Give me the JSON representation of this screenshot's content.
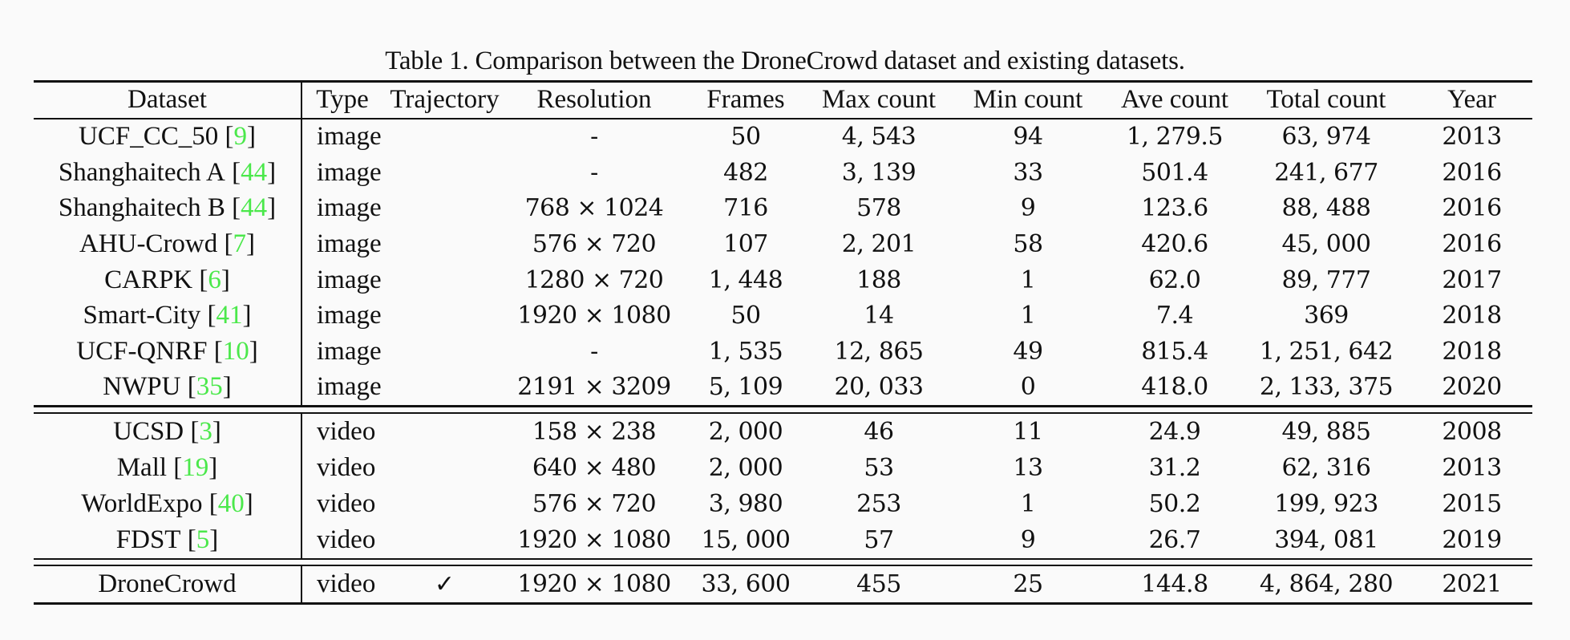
{
  "caption": "Table 1. Comparison between the DroneCrowd dataset and existing datasets.",
  "colors": {
    "citation": "#4be84b",
    "text": "#111111",
    "background": "#fafafa"
  },
  "table": {
    "headers": {
      "dataset": "Dataset",
      "type": "Type",
      "trajectory": "Trajectory",
      "resolution": "Resolution",
      "frames": "Frames",
      "max_count": "Max count",
      "min_count": "Min count",
      "ave_count": "Ave count",
      "total_count": "Total count",
      "year": "Year"
    },
    "image_datasets": [
      {
        "name": "UCF_CC_50",
        "cite": "9",
        "type": "image",
        "trajectory": "",
        "resolution": "-",
        "frames": "50",
        "max_count": "4, 543",
        "min_count": "94",
        "ave_count": "1, 279.5",
        "total_count": "63, 974",
        "year": "2013"
      },
      {
        "name": "Shanghaitech A",
        "cite": "44",
        "type": "image",
        "trajectory": "",
        "resolution": "-",
        "frames": "482",
        "max_count": "3, 139",
        "min_count": "33",
        "ave_count": "501.4",
        "total_count": "241, 677",
        "year": "2016"
      },
      {
        "name": "Shanghaitech B",
        "cite": "44",
        "type": "image",
        "trajectory": "",
        "resolution": "768 × 1024",
        "frames": "716",
        "max_count": "578",
        "min_count": "9",
        "ave_count": "123.6",
        "total_count": "88, 488",
        "year": "2016"
      },
      {
        "name": "AHU-Crowd",
        "cite": "7",
        "type": "image",
        "trajectory": "",
        "resolution": "576 × 720",
        "frames": "107",
        "max_count": "2, 201",
        "min_count": "58",
        "ave_count": "420.6",
        "total_count": "45, 000",
        "year": "2016"
      },
      {
        "name": "CARPK",
        "cite": "6",
        "type": "image",
        "trajectory": "",
        "resolution": "1280 × 720",
        "frames": "1, 448",
        "max_count": "188",
        "min_count": "1",
        "ave_count": "62.0",
        "total_count": "89, 777",
        "year": "2017"
      },
      {
        "name": "Smart-City",
        "cite": "41",
        "type": "image",
        "trajectory": "",
        "resolution": "1920 × 1080",
        "frames": "50",
        "max_count": "14",
        "min_count": "1",
        "ave_count": "7.4",
        "total_count": "369",
        "year": "2018"
      },
      {
        "name": "UCF-QNRF",
        "cite": "10",
        "type": "image",
        "trajectory": "",
        "resolution": "-",
        "frames": "1, 535",
        "max_count": "12, 865",
        "min_count": "49",
        "ave_count": "815.4",
        "total_count": "1, 251, 642",
        "year": "2018"
      },
      {
        "name": "NWPU",
        "cite": "35",
        "type": "image",
        "trajectory": "",
        "resolution": "2191 × 3209",
        "frames": "5, 109",
        "max_count": "20, 033",
        "min_count": "0",
        "ave_count": "418.0",
        "total_count": "2, 133, 375",
        "year": "2020"
      }
    ],
    "video_datasets": [
      {
        "name": "UCSD",
        "cite": "3",
        "type": "video",
        "trajectory": "",
        "resolution": "158 × 238",
        "frames": "2, 000",
        "max_count": "46",
        "min_count": "11",
        "ave_count": "24.9",
        "total_count": "49, 885",
        "year": "2008"
      },
      {
        "name": "Mall",
        "cite": "19",
        "type": "video",
        "trajectory": "",
        "resolution": "640 × 480",
        "frames": "2, 000",
        "max_count": "53",
        "min_count": "13",
        "ave_count": "31.2",
        "total_count": "62, 316",
        "year": "2013"
      },
      {
        "name": "WorldExpo",
        "cite": "40",
        "type": "video",
        "trajectory": "",
        "resolution": "576 × 720",
        "frames": "3, 980",
        "max_count": "253",
        "min_count": "1",
        "ave_count": "50.2",
        "total_count": "199, 923",
        "year": "2015"
      },
      {
        "name": "FDST",
        "cite": "5",
        "type": "video",
        "trajectory": "",
        "resolution": "1920 × 1080",
        "frames": "15, 000",
        "max_count": "57",
        "min_count": "9",
        "ave_count": "26.7",
        "total_count": "394, 081",
        "year": "2019"
      }
    ],
    "ours": [
      {
        "name": "DroneCrowd",
        "cite": "",
        "type": "video",
        "trajectory": "✓",
        "resolution": "1920 × 1080",
        "frames": "33, 600",
        "max_count": "455",
        "min_count": "25",
        "ave_count": "144.8",
        "total_count": "4, 864, 280",
        "year": "2021"
      }
    ]
  }
}
